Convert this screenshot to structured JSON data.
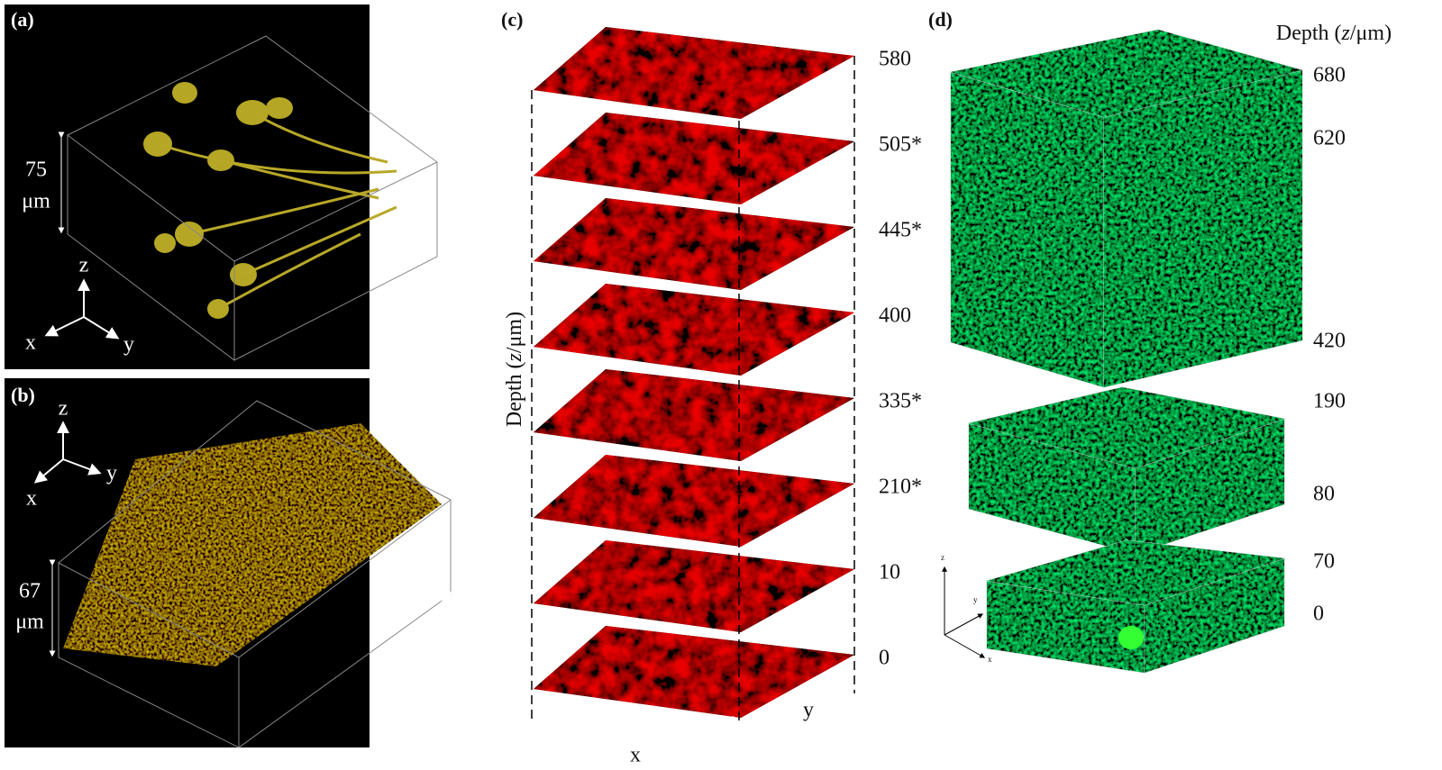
{
  "panels": {
    "a": {
      "label": "(a)",
      "thickness": "75",
      "unit": "μm",
      "axes": [
        "z",
        "x",
        "y"
      ]
    },
    "b": {
      "label": "(b)",
      "thickness": "67",
      "unit": "μm",
      "axes": [
        "z",
        "x",
        "y"
      ]
    },
    "c": {
      "label": "(c)",
      "depth_label": {
        "before": "Depth (",
        "italic": "z",
        "after": "/μm)"
      },
      "depths": [
        "580",
        "505*",
        "445*",
        "400",
        "335*",
        "210*",
        "10",
        "0"
      ],
      "axes": [
        "x",
        "y"
      ]
    },
    "d": {
      "label": "(d)",
      "depth_label": {
        "before": "Depth (",
        "italic": "z",
        "after": "/μm)"
      },
      "depths": [
        "680",
        "620",
        "420",
        "190",
        "80",
        "70",
        "0"
      ],
      "axes": [
        "z",
        "y",
        "x"
      ]
    }
  }
}
